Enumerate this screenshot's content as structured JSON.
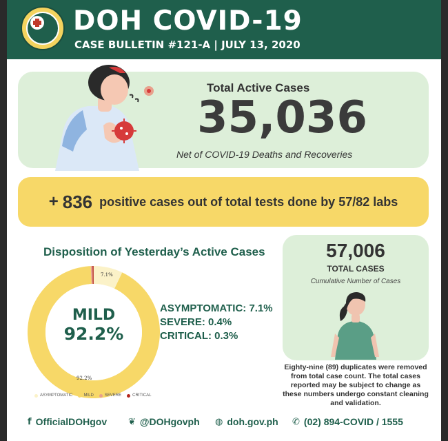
{
  "header": {
    "title": "DOH COVID-19",
    "subtitle": "CASE BULLETIN #121-A | JULY 13, 2020",
    "seal_icon": "doh-seal-icon"
  },
  "active_cases": {
    "label": "Total Active Cases",
    "number": "35,036",
    "note": "Net of COVID-19 Deaths and Recoveries"
  },
  "positive": {
    "plus": "+",
    "count": "836",
    "text": "positive cases out of  total tests done by 57/82 labs"
  },
  "disposition": {
    "title": "Disposition of Yesterday’s Active Cases",
    "center_label": "MILD",
    "center_value": "92.2%",
    "ring_label_small": "7.1%",
    "ring_label_big": "92.2%",
    "stats": [
      "ASYMPTOMATIC: 7.1%",
      "SEVERE: 0.4%",
      "CRITICAL: 0.3%"
    ],
    "legend": [
      {
        "label": "ASYMPTOMATIC",
        "color": "#fbf2c8"
      },
      {
        "label": "MILD",
        "color": "#f7d868"
      },
      {
        "label": "SEVERE",
        "color": "#e8a08c"
      },
      {
        "label": "CRITICAL",
        "color": "#b3261e"
      }
    ]
  },
  "total_cases": {
    "number": "57,006",
    "label": "TOTAL CASES",
    "note": "Cumulative Number of Cases"
  },
  "duplicates_note": "Eighty-nine (89) duplicates were removed from total case count. The total cases reported may be subject to change as these numbers undergo constant cleaning and validation.",
  "footer": [
    {
      "icon": "facebook-icon",
      "glyph": "f",
      "text": "OfficialDOHgov"
    },
    {
      "icon": "twitter-icon",
      "glyph": "❦",
      "text": "@DOHgovph"
    },
    {
      "icon": "globe-icon",
      "glyph": "◍",
      "text": "doh.gov.ph"
    },
    {
      "icon": "phone-icon",
      "glyph": "✆",
      "text": "(02) 894-COVID  /  1555"
    }
  ],
  "chart_data": {
    "type": "pie",
    "categories": [
      "ASYMPTOMATIC",
      "MILD",
      "SEVERE",
      "CRITICAL"
    ],
    "values": [
      7.1,
      92.2,
      0.4,
      0.3
    ],
    "title": "Disposition of Yesterday’s Active Cases",
    "colors": [
      "#fbf2c8",
      "#f7d868",
      "#e8a08c",
      "#b3261e"
    ]
  }
}
